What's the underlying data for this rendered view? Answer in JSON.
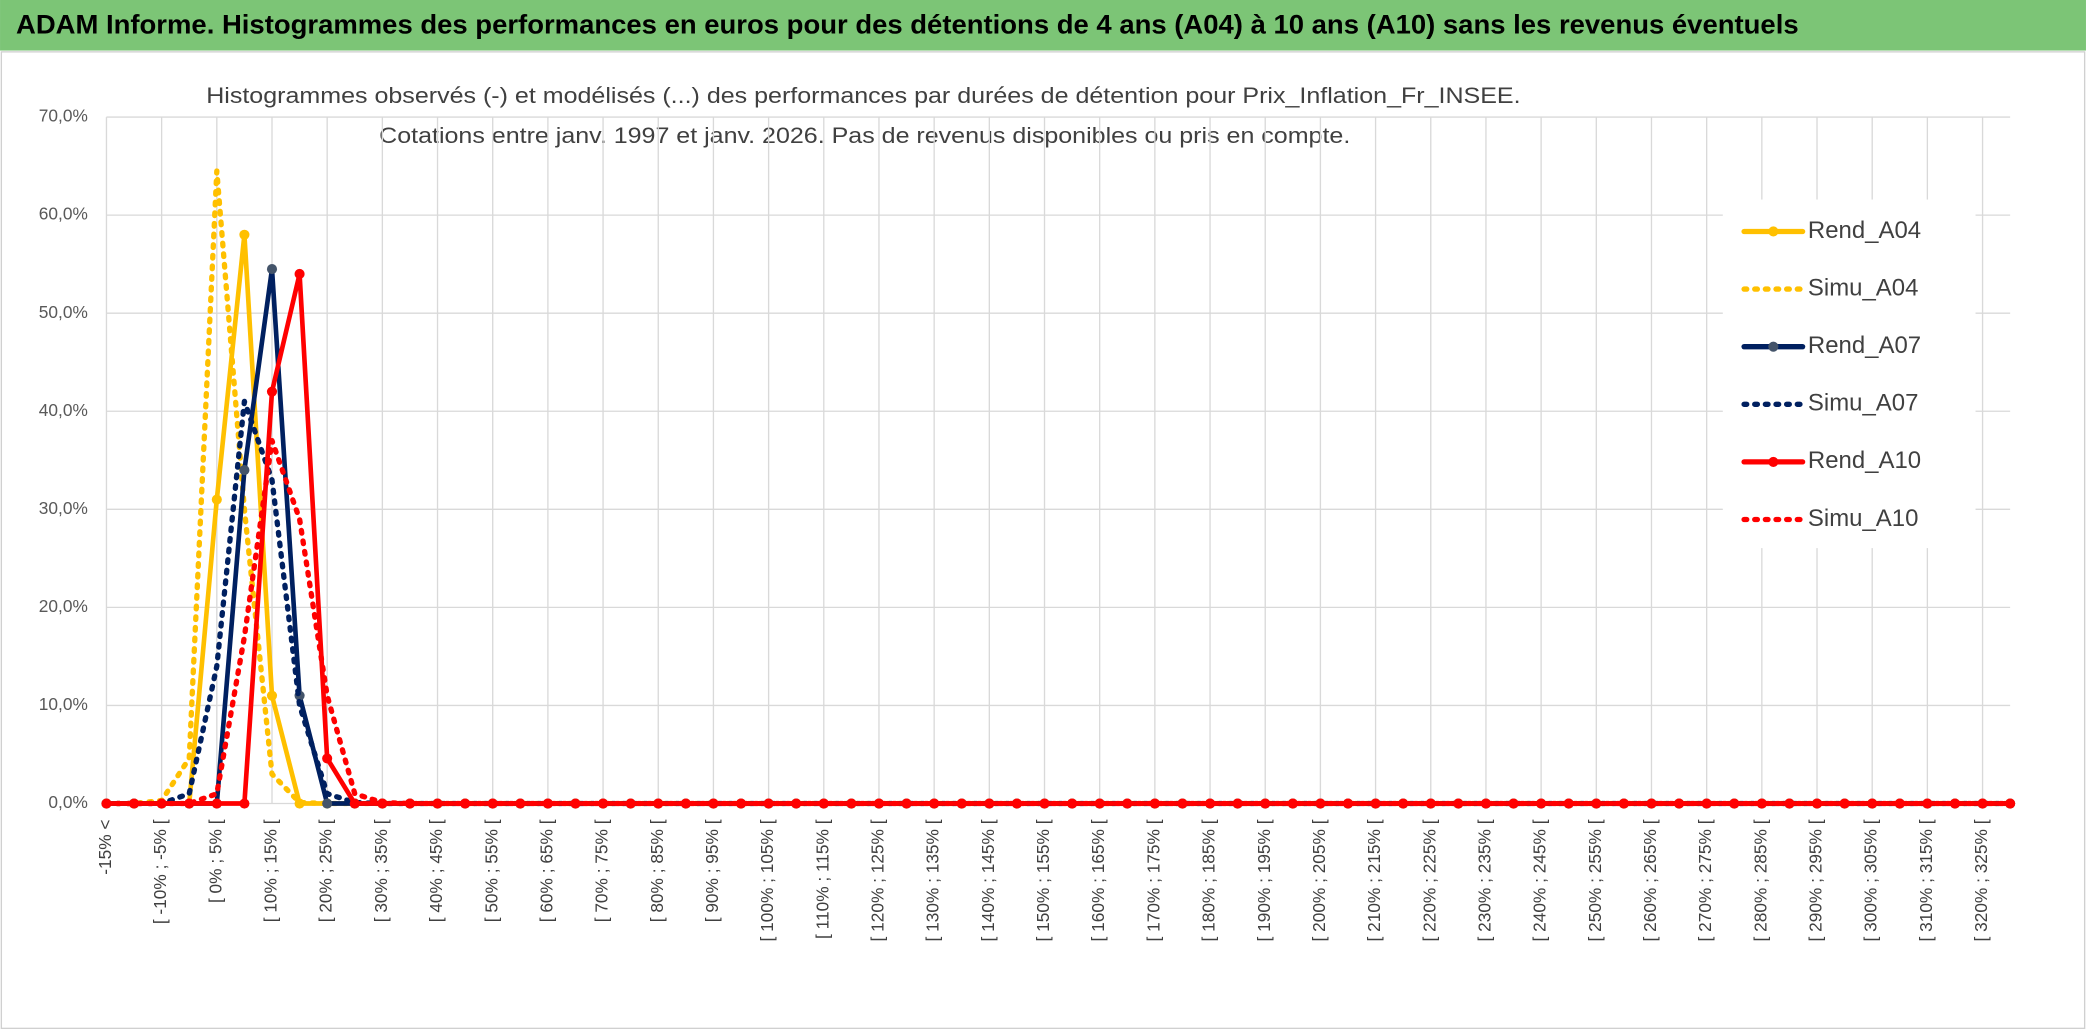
{
  "chart_data": {
    "type": "line",
    "title": "ADAM Informe. Histogrammes des performances en euros pour des détentions de 4 ans (A04) à 10 ans (A10) sans les revenus éventuels",
    "subtitle": [
      "Histogrammes observés (-) et modélisés (...) des performances par durées de détention pour Prix_Inflation_Fr_INSEE.",
      "Cotations entre janv. 1997 et janv. 2026. Pas de revenus disponibles ou pris en compte."
    ],
    "categories": [
      "-15% <",
      null,
      "[ -10% ; -5% [",
      null,
      "[ 0% ; 5% [",
      null,
      "[ 10% ; 15% [",
      null,
      "[ 20% ; 25% [",
      null,
      "[ 30% ; 35% [",
      null,
      "[ 40% ; 45% [",
      null,
      "[ 50% ; 55% [",
      null,
      "[ 60% ; 65% [",
      null,
      "[ 70% ; 75% [",
      null,
      "[ 80% ; 85% [",
      null,
      "[ 90% ; 95% [",
      null,
      "[ 100% ; 105% [",
      null,
      "[ 110% ; 115% [",
      null,
      "[ 120% ; 125% [",
      null,
      "[ 130% ; 135% [",
      null,
      "[ 140% ; 145% [",
      null,
      "[ 150% ; 155% [",
      null,
      "[ 160% ; 165% [",
      null,
      "[ 170% ; 175% [",
      null,
      "[ 180% ; 185% [",
      null,
      "[ 190% ; 195% [",
      null,
      "[ 200% ; 205% [",
      null,
      "[ 210% ; 215% [",
      null,
      "[ 220% ; 225% [",
      null,
      "[ 230% ; 235% [",
      null,
      "[ 240% ; 245% [",
      null,
      "[ 250% ; 255% [",
      null,
      "[ 260% ; 265% [",
      null,
      "[ 270% ; 275% [",
      null,
      "[ 280% ; 285% [",
      null,
      "[ 290% ; 295% [",
      null,
      "[ 300% ; 305% [",
      null,
      "[ 310% ; 315% [",
      null,
      "[ 320% ; 325% [",
      null
    ],
    "series": [
      {
        "name": "Rend_A04",
        "color": "#FFC000",
        "line_style": "solid",
        "values": [
          0,
          0,
          0,
          0,
          31,
          58,
          11,
          0,
          0,
          0,
          0,
          0,
          0,
          0,
          0,
          0,
          0,
          0,
          0,
          0,
          0,
          0,
          0,
          0,
          0,
          0,
          0,
          0,
          0,
          0,
          0,
          0,
          0,
          0,
          0,
          0,
          0,
          0,
          0,
          0,
          0,
          0,
          0,
          0,
          0,
          0,
          0,
          0,
          0,
          0,
          0,
          0,
          0,
          0,
          0,
          0,
          0,
          0,
          0,
          0,
          0,
          0,
          0,
          0,
          0,
          0,
          0,
          0,
          0,
          0
        ]
      },
      {
        "name": "Simu_A04",
        "color": "#FFC000",
        "line_style": "dotted",
        "values": [
          0,
          0,
          0.3,
          4.6,
          64.5,
          30,
          3,
          0.1,
          0,
          0,
          0,
          0,
          0,
          0,
          0,
          0,
          0,
          0,
          0,
          0,
          0,
          0,
          0,
          0,
          0,
          0,
          0,
          0,
          0,
          0,
          0,
          0,
          0,
          0,
          0,
          0,
          0,
          0,
          0,
          0,
          0,
          0,
          0,
          0,
          0,
          0,
          0,
          0,
          0,
          0,
          0,
          0,
          0,
          0,
          0,
          0,
          0,
          0,
          0,
          0,
          0,
          0,
          0,
          0,
          0,
          0,
          0,
          0,
          0,
          0
        ]
      },
      {
        "name": "Rend_A07",
        "color": "#002060",
        "line_style": "solid",
        "values": [
          0,
          0,
          0,
          0,
          0,
          34,
          54.5,
          11,
          0,
          0,
          0,
          0,
          0,
          0,
          0,
          0,
          0,
          0,
          0,
          0,
          0,
          0,
          0,
          0,
          0,
          0,
          0,
          0,
          0,
          0,
          0,
          0,
          0,
          0,
          0,
          0,
          0,
          0,
          0,
          0,
          0,
          0,
          0,
          0,
          0,
          0,
          0,
          0,
          0,
          0,
          0,
          0,
          0,
          0,
          0,
          0,
          0,
          0,
          0,
          0,
          0,
          0,
          0,
          0,
          0,
          0,
          0,
          0,
          0,
          0
        ]
      },
      {
        "name": "Simu_A07",
        "color": "#002060",
        "line_style": "dotted",
        "values": [
          0,
          0,
          0,
          1,
          14,
          41,
          33,
          10,
          1,
          0.1,
          0,
          0,
          0,
          0,
          0,
          0,
          0,
          0,
          0,
          0,
          0,
          0,
          0,
          0,
          0,
          0,
          0,
          0,
          0,
          0,
          0,
          0,
          0,
          0,
          0,
          0,
          0,
          0,
          0,
          0,
          0,
          0,
          0,
          0,
          0,
          0,
          0,
          0,
          0,
          0,
          0,
          0,
          0,
          0,
          0,
          0,
          0,
          0,
          0,
          0,
          0,
          0,
          0,
          0,
          0,
          0,
          0,
          0,
          0,
          0
        ]
      },
      {
        "name": "Rend_A10",
        "color": "#FF0000",
        "line_style": "solid",
        "values": [
          0,
          0,
          0,
          0,
          0,
          0,
          42,
          54,
          4.6,
          0,
          0,
          0,
          0,
          0,
          0,
          0,
          0,
          0,
          0,
          0,
          0,
          0,
          0,
          0,
          0,
          0,
          0,
          0,
          0,
          0,
          0,
          0,
          0,
          0,
          0,
          0,
          0,
          0,
          0,
          0,
          0,
          0,
          0,
          0,
          0,
          0,
          0,
          0,
          0,
          0,
          0,
          0,
          0,
          0,
          0,
          0,
          0,
          0,
          0,
          0,
          0,
          0,
          0,
          0,
          0,
          0,
          0,
          0,
          0,
          0
        ]
      },
      {
        "name": "Simu_A10",
        "color": "#FF0000",
        "line_style": "dotted",
        "values": [
          0,
          0,
          0,
          0,
          1,
          17,
          37,
          29,
          11,
          1,
          0.1,
          0,
          0,
          0,
          0,
          0,
          0,
          0,
          0,
          0,
          0,
          0,
          0,
          0,
          0,
          0,
          0,
          0,
          0,
          0,
          0,
          0,
          0,
          0,
          0,
          0,
          0,
          0,
          0,
          0,
          0,
          0,
          0,
          0,
          0,
          0,
          0,
          0,
          0,
          0,
          0,
          0,
          0,
          0,
          0,
          0,
          0,
          0,
          0,
          0,
          0,
          0,
          0,
          0,
          0,
          0,
          0,
          0,
          0,
          0
        ]
      }
    ],
    "ylim": [
      0,
      70
    ],
    "yticks": [
      {
        "value": 0,
        "label": "0,0%"
      },
      {
        "value": 10,
        "label": "10,0%"
      },
      {
        "value": 20,
        "label": "20,0%"
      },
      {
        "value": 30,
        "label": "30,0%"
      },
      {
        "value": 40,
        "label": "40,0%"
      },
      {
        "value": 50,
        "label": "50,0%"
      },
      {
        "value": 60,
        "label": "60,0%"
      },
      {
        "value": 70,
        "label": "70,0%"
      }
    ],
    "grid": true,
    "legend": "right"
  }
}
